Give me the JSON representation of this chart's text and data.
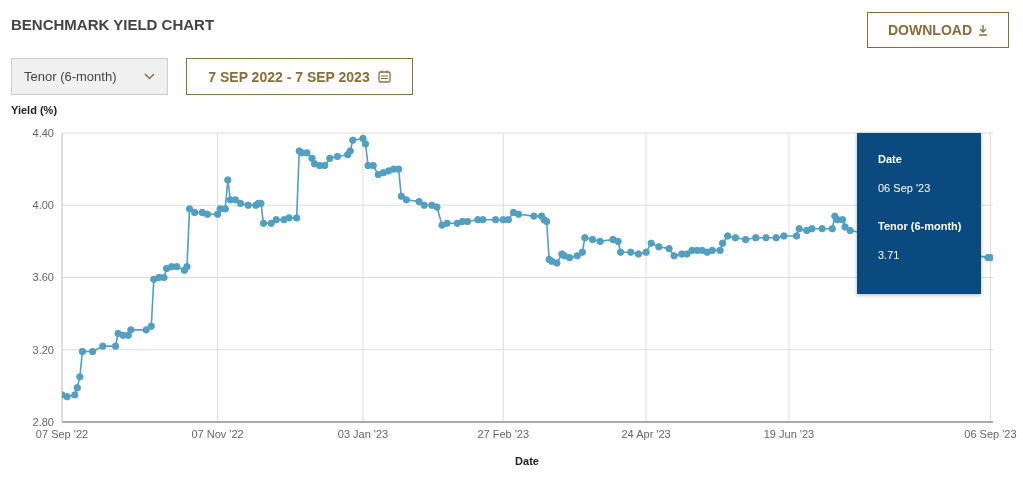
{
  "chart_data": {
    "type": "line",
    "title": "BENCHMARK YIELD CHART",
    "xlabel": "Date",
    "ylabel": "Yield (%)",
    "annotations": [
      "DOWNLOAD",
      "Tenor (6-month)",
      "7 SEP 2022 - 7 SEP 2023",
      "Date",
      "06 Sep '23",
      "Tenor (6-month)",
      "3.71"
    ],
    "x": [
      "2022-09-07",
      "2022-09-09",
      "2022-09-12",
      "2022-09-13",
      "2022-09-14",
      "2022-09-15",
      "2022-09-19",
      "2022-09-23",
      "2022-09-28",
      "2022-09-29",
      "2022-10-01",
      "2022-10-03",
      "2022-10-04",
      "2022-10-10",
      "2022-10-12",
      "2022-10-13",
      "2022-10-15",
      "2022-10-17",
      "2022-10-18",
      "2022-10-20",
      "2022-10-22",
      "2022-10-25",
      "2022-10-26",
      "2022-10-27",
      "2022-10-29",
      "2022-11-01",
      "2022-11-03",
      "2022-11-07",
      "2022-11-08",
      "2022-11-10",
      "2022-11-11",
      "2022-11-12",
      "2022-11-14",
      "2022-11-16",
      "2022-11-19",
      "2022-11-22",
      "2022-11-23",
      "2022-11-24",
      "2022-11-25",
      "2022-11-28",
      "2022-11-30",
      "2022-12-03",
      "2022-12-05",
      "2022-12-08",
      "2022-12-09",
      "2022-12-10",
      "2022-12-12",
      "2022-12-14",
      "2022-12-15",
      "2022-12-17",
      "2022-12-19",
      "2022-12-21",
      "2022-12-24",
      "2022-12-28",
      "2022-12-29",
      "2022-12-30",
      "2023-01-03",
      "2023-01-04",
      "2023-01-05",
      "2023-01-07",
      "2023-01-09",
      "2023-01-11",
      "2023-01-13",
      "2023-01-15",
      "2023-01-17",
      "2023-01-18",
      "2023-01-20",
      "2023-01-25",
      "2023-01-27",
      "2023-01-30",
      "2023-02-01",
      "2023-02-03",
      "2023-02-05",
      "2023-02-09",
      "2023-02-11",
      "2023-02-13",
      "2023-02-17",
      "2023-02-19",
      "2023-02-24",
      "2023-02-27",
      "2023-03-01",
      "2023-03-03",
      "2023-03-05",
      "2023-03-11",
      "2023-03-14",
      "2023-03-15",
      "2023-03-16",
      "2023-03-17",
      "2023-03-18",
      "2023-03-20",
      "2023-03-22",
      "2023-03-23",
      "2023-03-25",
      "2023-03-28",
      "2023-03-30",
      "2023-03-31",
      "2023-04-03",
      "2023-04-06",
      "2023-04-11",
      "2023-04-13",
      "2023-04-14",
      "2023-04-18",
      "2023-04-21",
      "2023-04-24",
      "2023-04-26",
      "2023-04-29",
      "2023-05-03",
      "2023-05-05",
      "2023-05-08",
      "2023-05-10",
      "2023-05-12",
      "2023-05-14",
      "2023-05-16",
      "2023-05-18",
      "2023-05-20",
      "2023-05-23",
      "2023-05-24",
      "2023-05-26",
      "2023-05-29",
      "2023-06-02",
      "2023-06-06",
      "2023-06-10",
      "2023-06-14",
      "2023-06-17",
      "2023-06-22",
      "2023-06-23",
      "2023-06-26",
      "2023-06-28",
      "2023-07-02",
      "2023-07-06",
      "2023-07-07",
      "2023-07-08",
      "2023-07-10",
      "2023-07-11",
      "2023-07-13",
      "2023-09-05",
      "2023-09-06"
    ],
    "series": [
      {
        "color": "#519fc1",
        "values": [
          2.95,
          2.94,
          2.95,
          2.99,
          3.05,
          3.19,
          3.19,
          3.22,
          3.22,
          3.29,
          3.28,
          3.28,
          3.31,
          3.31,
          3.33,
          3.59,
          3.6,
          3.6,
          3.65,
          3.66,
          3.66,
          3.64,
          3.66,
          3.98,
          3.96,
          3.96,
          3.95,
          3.95,
          3.98,
          3.98,
          4.14,
          4.03,
          4.03,
          4.01,
          4.0,
          4.0,
          4.01,
          4.01,
          3.9,
          3.9,
          3.92,
          3.92,
          3.93,
          3.93,
          4.3,
          4.29,
          4.29,
          4.26,
          4.23,
          4.22,
          4.22,
          4.26,
          4.27,
          4.28,
          4.3,
          4.36,
          4.37,
          4.34,
          4.22,
          4.22,
          4.17,
          4.18,
          4.19,
          4.2,
          4.2,
          4.05,
          4.03,
          4.02,
          4.0,
          4.0,
          3.99,
          3.89,
          3.9,
          3.9,
          3.91,
          3.91,
          3.92,
          3.92,
          3.92,
          3.92,
          3.92,
          3.96,
          3.95,
          3.94,
          3.94,
          3.92,
          3.91,
          3.7,
          3.69,
          3.68,
          3.73,
          3.72,
          3.71,
          3.72,
          3.74,
          3.82,
          3.81,
          3.8,
          3.81,
          3.8,
          3.74,
          3.74,
          3.73,
          3.74,
          3.79,
          3.77,
          3.76,
          3.72,
          3.73,
          3.73,
          3.75,
          3.75,
          3.75,
          3.74,
          3.75,
          3.75,
          3.79,
          3.83,
          3.82,
          3.81,
          3.82,
          3.82,
          3.82,
          3.83,
          3.83,
          3.87,
          3.86,
          3.87,
          3.87,
          3.87,
          3.94,
          3.92,
          3.92,
          3.88,
          3.86,
          3.71,
          3.71
        ]
      }
    ],
    "xlim": [
      "2022-09-07",
      "2023-09-07"
    ],
    "xticks": [
      {
        "value": "2022-09-07",
        "label": "07 Sep '22"
      },
      {
        "value": "2022-11-07",
        "label": "07 Nov '22"
      },
      {
        "value": "2023-01-03",
        "label": "03 Jan '23"
      },
      {
        "value": "2023-02-27",
        "label": "27 Feb '23"
      },
      {
        "value": "2023-04-24",
        "label": "24 Apr '23"
      },
      {
        "value": "2023-06-19",
        "label": "19 Jun '23"
      },
      {
        "value": "2023-09-06",
        "label": "06 Sep '23"
      }
    ],
    "ylim": [
      2.8,
      4.4
    ],
    "yticks": [
      {
        "value": 2.8,
        "label": "2.80"
      },
      {
        "value": 3.2,
        "label": "3.20"
      },
      {
        "value": 3.6,
        "label": "3.60"
      },
      {
        "value": 4.0,
        "label": "4.00"
      },
      {
        "value": 4.4,
        "label": "4.40"
      }
    ],
    "grid": true,
    "marker": "circle",
    "line_style": "solid"
  }
}
